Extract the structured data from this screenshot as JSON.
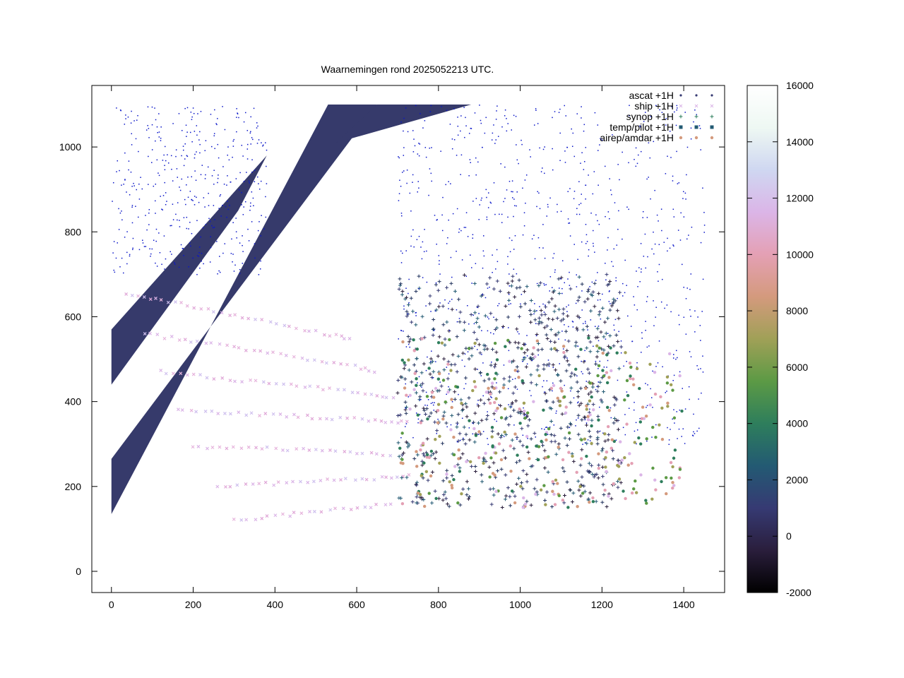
{
  "chart_data": {
    "type": "scatter",
    "title": "Waarnemingen rond 2025052213 UTC.",
    "xlabel": "",
    "ylabel": "",
    "xlim": [
      -48,
      1500
    ],
    "ylim": [
      -50,
      1145
    ],
    "xticks": [
      "0",
      "200",
      "400",
      "600",
      "800",
      "1000",
      "1200",
      "1400"
    ],
    "yticks": [
      "0",
      "200",
      "400",
      "600",
      "800",
      "1000"
    ],
    "legend_position": "top-right",
    "series": [
      {
        "name": "ascat +1H",
        "marker": "dot"
      },
      {
        "name": "ship +1H",
        "marker": "cross"
      },
      {
        "name": "synop +1H",
        "marker": "plus"
      },
      {
        "name": "temp/pilot +1H",
        "marker": "square"
      },
      {
        "name": "airep/amdar +1H",
        "marker": "circle"
      }
    ],
    "colorbar": {
      "min": -2000,
      "max": 16000,
      "ticks": [
        "-2000",
        "0",
        "2000",
        "4000",
        "6000",
        "8000",
        "10000",
        "12000",
        "14000",
        "16000"
      ],
      "colors": [
        "#000000",
        "#2a1e3c",
        "#363a73",
        "#235a73",
        "#2e7e5c",
        "#5c9a45",
        "#a0a057",
        "#d49a7d",
        "#e4a0b4",
        "#dbb5e7",
        "#cfd7f1",
        "#eef8f3",
        "#ffffff"
      ]
    },
    "ascat_swaths": [
      {
        "x0": 0,
        "y0": 135,
        "x1": 0,
        "y1": 265,
        "x2": 650,
        "y2": 1100,
        "x3": 530,
        "y3": 1100
      },
      {
        "x0": 0,
        "y0": 440,
        "x1": 0,
        "y1": 570,
        "x2": 380,
        "y2": 980,
        "x3": 310,
        "y3": 850
      },
      {
        "x0": 550,
        "y0": 1010,
        "x1": 650,
        "y1": 1100,
        "x2": 1000,
        "y2": 1100,
        "x3": 880,
        "y3": 1100
      }
    ],
    "ship_tracks": [
      {
        "x": [
          40,
          120,
          220,
          320,
          420,
          520,
          600
        ],
        "y": [
          650,
          640,
          620,
          600,
          580,
          560,
          545
        ]
      },
      {
        "x": [
          80,
          180,
          280,
          380,
          480,
          580,
          660
        ],
        "y": [
          560,
          545,
          530,
          515,
          500,
          485,
          470
        ]
      },
      {
        "x": [
          120,
          220,
          320,
          420,
          520,
          620,
          700
        ],
        "y": [
          470,
          460,
          450,
          440,
          430,
          420,
          410
        ]
      },
      {
        "x": [
          160,
          260,
          360,
          460,
          560,
          660,
          740
        ],
        "y": [
          380,
          375,
          370,
          365,
          360,
          355,
          350
        ]
      },
      {
        "x": [
          200,
          300,
          400,
          500,
          600,
          700
        ],
        "y": [
          290,
          290,
          290,
          285,
          280,
          275
        ]
      },
      {
        "x": [
          260,
          360,
          460,
          560,
          660,
          740
        ],
        "y": [
          200,
          205,
          210,
          215,
          220,
          225
        ]
      },
      {
        "x": [
          300,
          400,
          500,
          600,
          700
        ],
        "y": [
          120,
          130,
          140,
          150,
          160
        ]
      }
    ],
    "synop_region": {
      "xmin": 700,
      "xmax": 1250,
      "ymin": 150,
      "ymax": 700
    },
    "airep_region": {
      "xmin": 700,
      "xmax": 1400,
      "ymin": 150,
      "ymax": 550
    }
  }
}
